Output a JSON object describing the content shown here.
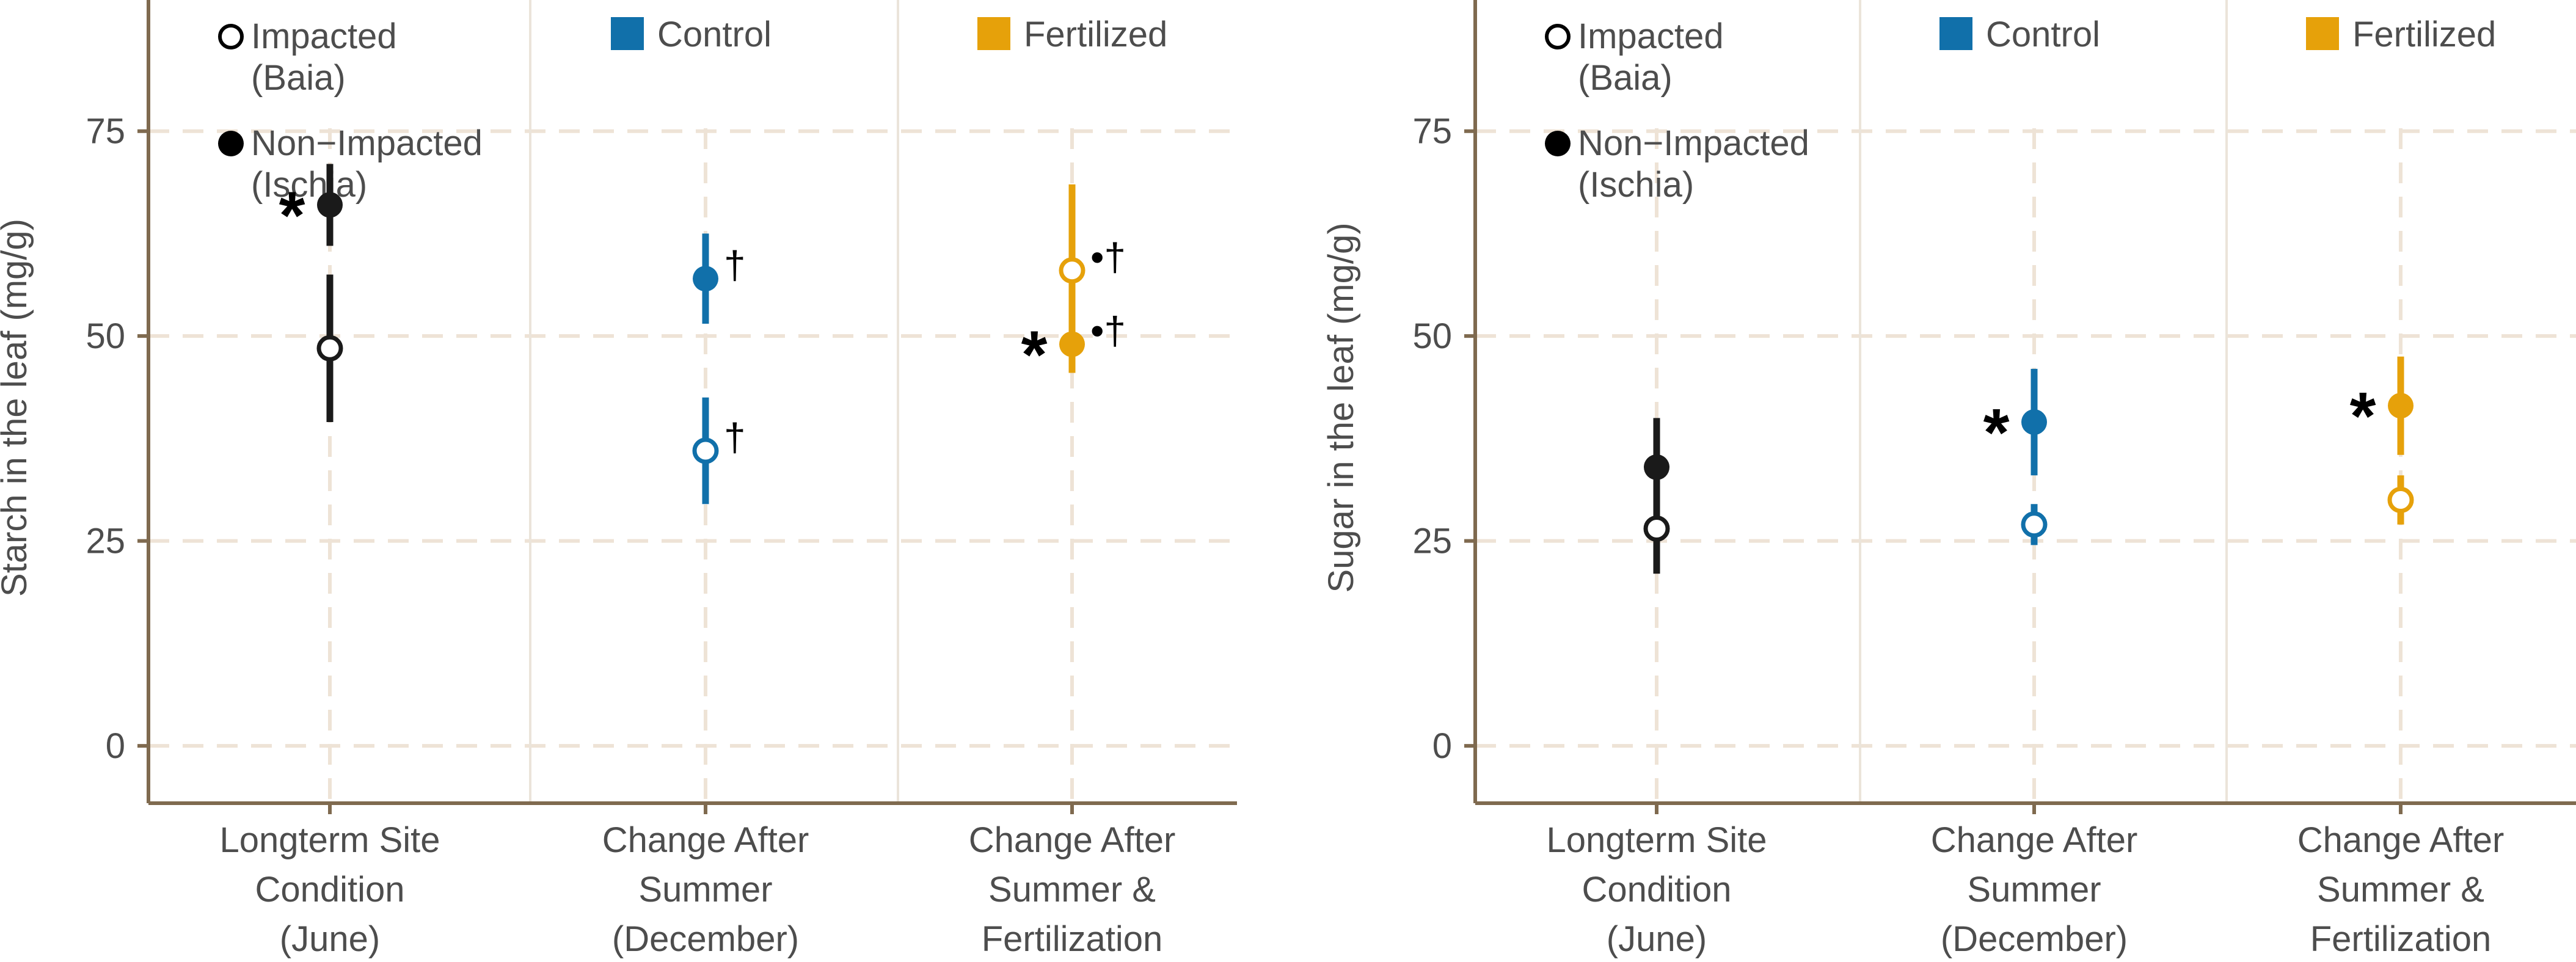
{
  "figure_colors": {
    "axis": "#7f6a4f",
    "grid": "#eee3d6",
    "panel_sep": "#ebe4da",
    "text": "#4d4d4d",
    "impacted_label_black": "#000000"
  },
  "chart_data": [
    {
      "type": "pointrange",
      "panel": "left",
      "ylabel": "Starch in the leaf (mg/g)",
      "ylim": [
        -7,
        91
      ],
      "yticks": [
        0,
        25,
        50,
        75
      ],
      "grid": true,
      "categories": [
        {
          "lines": [
            "Longterm Site",
            "Condition",
            "(June)"
          ]
        },
        {
          "lines": [
            "Change After",
            "Summer",
            "(December)"
          ]
        },
        {
          "lines": [
            "Change After",
            "Summer &",
            "Fertilization"
          ]
        }
      ],
      "legend": [
        {
          "shape": "open-circle",
          "lines": [
            "Impacted",
            "(Baia)"
          ]
        },
        {
          "shape": "filled-circle",
          "lines": [
            "Non−Impacted",
            "(Ischia)"
          ]
        }
      ],
      "group_legend": [
        {
          "label": "Control",
          "color": "#1170aa",
          "column": 1
        },
        {
          "label": "Fertilized",
          "color": "#e6a10a",
          "column": 2
        }
      ],
      "points": [
        {
          "column": 0,
          "series": "Non-Impacted (Ischia)",
          "filled": true,
          "color": "#1a1a1a",
          "value": 66,
          "low": 61,
          "high": 71,
          "annotation": "*",
          "annotation_side": "left"
        },
        {
          "column": 0,
          "series": "Impacted (Baia)",
          "filled": false,
          "color": "#1a1a1a",
          "value": 48.5,
          "low": 39.5,
          "high": 57.5,
          "annotation": "",
          "annotation_side": "right"
        },
        {
          "column": 1,
          "series": "Non-Impacted (Ischia)",
          "filled": true,
          "color": "#1170aa",
          "value": 57,
          "low": 51.5,
          "high": 62.5,
          "annotation": "†",
          "annotation_side": "right"
        },
        {
          "column": 1,
          "series": "Impacted (Baia)",
          "filled": false,
          "color": "#1170aa",
          "value": 36,
          "low": 29.5,
          "high": 42.5,
          "annotation": "†",
          "annotation_side": "right"
        },
        {
          "column": 2,
          "series": "Impacted (Baia)",
          "filled": false,
          "color": "#e6a10a",
          "value": 58,
          "low": 52,
          "high": 68.5,
          "annotation": "•†",
          "annotation_side": "right"
        },
        {
          "column": 2,
          "series": "Non-Impacted (Ischia)",
          "filled": true,
          "color": "#e6a10a",
          "value": 49,
          "low": 45.5,
          "high": 52.5,
          "annotation": "*",
          "annotation_side": "left",
          "annotation2": "•†"
        }
      ]
    },
    {
      "type": "pointrange",
      "panel": "right",
      "ylabel": "Sugar in the leaf (mg/g)",
      "ylim": [
        -7,
        91
      ],
      "yticks": [
        0,
        25,
        50,
        75
      ],
      "grid": true,
      "categories": [
        {
          "lines": [
            "Longterm Site",
            "Condition",
            "(June)"
          ]
        },
        {
          "lines": [
            "Change After",
            "Summer",
            "(December)"
          ]
        },
        {
          "lines": [
            "Change After",
            "Summer &",
            "Fertilization"
          ]
        }
      ],
      "legend": [
        {
          "shape": "open-circle",
          "lines": [
            "Impacted",
            "(Baia)"
          ]
        },
        {
          "shape": "filled-circle",
          "lines": [
            "Non−Impacted",
            "(Ischia)"
          ]
        }
      ],
      "group_legend": [
        {
          "label": "Control",
          "color": "#1170aa",
          "column": 1
        },
        {
          "label": "Fertilized",
          "color": "#e6a10a",
          "column": 2
        }
      ],
      "points": [
        {
          "column": 0,
          "series": "Non-Impacted (Ischia)",
          "filled": true,
          "color": "#1a1a1a",
          "value": 34,
          "low": 27.5,
          "high": 40,
          "annotation": "",
          "annotation_side": "left"
        },
        {
          "column": 0,
          "series": "Impacted (Baia)",
          "filled": false,
          "color": "#1a1a1a",
          "value": 26.5,
          "low": 21,
          "high": 32,
          "annotation": "",
          "annotation_side": "left"
        },
        {
          "column": 1,
          "series": "Non-Impacted (Ischia)",
          "filled": true,
          "color": "#1170aa",
          "value": 39.5,
          "low": 33,
          "high": 46,
          "annotation": "*",
          "annotation_side": "left"
        },
        {
          "column": 1,
          "series": "Impacted (Baia)",
          "filled": false,
          "color": "#1170aa",
          "value": 27,
          "low": 24.5,
          "high": 29.5,
          "annotation": "",
          "annotation_side": "left"
        },
        {
          "column": 2,
          "series": "Non-Impacted (Ischia)",
          "filled": true,
          "color": "#e6a10a",
          "value": 41.5,
          "low": 35.5,
          "high": 47.5,
          "annotation": "*",
          "annotation_side": "left"
        },
        {
          "column": 2,
          "series": "Impacted (Baia)",
          "filled": false,
          "color": "#e6a10a",
          "value": 30,
          "low": 27,
          "high": 33,
          "annotation": "",
          "annotation_side": "left"
        }
      ]
    }
  ]
}
